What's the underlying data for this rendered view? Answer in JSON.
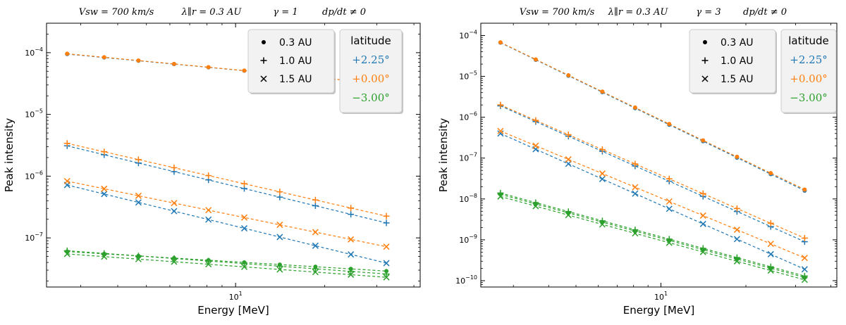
{
  "chart_data": [
    {
      "type": "scatter",
      "title": "V_sw = 700 km/s     λ∥^r = 0.3 AU     γ = 1     dp/dt ≠ 0",
      "title_parts": [
        "Vsw = 700 km/s",
        "λ∥r = 0.3 AU",
        "γ = 1",
        "dp/dt ≠ 0"
      ],
      "xlabel": "Energy [MeV]",
      "ylabel": "Peak intensity",
      "xscale": "log",
      "yscale": "log",
      "xlim": [
        2.3,
        42
      ],
      "ylim": [
        1.6e-08,
        0.0003
      ],
      "x_ticks": [
        {
          "value": 10,
          "label": "10^1"
        }
      ],
      "y_ticks": [
        {
          "value": 1e-07,
          "label": "10^-7"
        },
        {
          "value": 1e-06,
          "label": "10^-6"
        },
        {
          "value": 1e-05,
          "label": "10^-5"
        },
        {
          "value": 0.0001,
          "label": "10^-4"
        }
      ],
      "x": [
        2.7,
        3.6,
        4.7,
        6.2,
        8.1,
        10.7,
        14.1,
        18.6,
        24.5,
        32.3
      ],
      "series": [
        {
          "latitude": "+2.25°",
          "distance": "0.3 AU",
          "marker": "dot",
          "color": "#1f77b4",
          "y_start": 9.5e-05,
          "y_end": 3.1e-05
        },
        {
          "latitude": "+0.00°",
          "distance": "0.3 AU",
          "marker": "dot",
          "color": "#ff7f0e",
          "y_start": 9.6e-05,
          "y_end": 3.1e-05
        },
        {
          "latitude": "+2.25°",
          "distance": "1.0 AU",
          "marker": "plus",
          "color": "#1f77b4",
          "y_start": 3.1e-06,
          "y_end": 1.75e-07
        },
        {
          "latitude": "+0.00°",
          "distance": "1.0 AU",
          "marker": "plus",
          "color": "#ff7f0e",
          "y_start": 3.4e-06,
          "y_end": 2.25e-07
        },
        {
          "latitude": "+2.25°",
          "distance": "1.5 AU",
          "marker": "cross",
          "color": "#1f77b4",
          "y_start": 7.2e-07,
          "y_end": 3.9e-08
        },
        {
          "latitude": "+0.00°",
          "distance": "1.5 AU",
          "marker": "cross",
          "color": "#ff7f0e",
          "y_start": 8.3e-07,
          "y_end": 7.2e-08
        },
        {
          "latitude": "-3.00°",
          "distance": "0.3 AU",
          "marker": "dot",
          "color": "#2ca02c",
          "y_start": 6e-08,
          "y_end": 2.9e-08
        },
        {
          "latitude": "-3.00°",
          "distance": "1.0 AU",
          "marker": "plus",
          "color": "#2ca02c",
          "y_start": 6.2e-08,
          "y_end": 2.6e-08
        },
        {
          "latitude": "-3.00°",
          "distance": "1.5 AU",
          "marker": "cross",
          "color": "#2ca02c",
          "y_start": 5.5e-08,
          "y_end": 2.3e-08
        }
      ],
      "legend_markers": {
        "placement": "top-right",
        "entries": [
          {
            "marker": "dot",
            "label": "0.3 AU"
          },
          {
            "marker": "plus",
            "label": "1.0 AU"
          },
          {
            "marker": "cross",
            "label": "1.5 AU"
          }
        ]
      },
      "legend_latitude": {
        "title": "latitude",
        "placement": "top-right",
        "entries": [
          {
            "label": "+2.25°",
            "color": "#1f77b4"
          },
          {
            "label": "+0.00°",
            "color": "#ff7f0e"
          },
          {
            "label": "−3.00°",
            "color": "#2ca02c"
          }
        ]
      }
    },
    {
      "type": "scatter",
      "title": "V_sw = 700 km/s     λ∥^r = 0.3 AU     γ = 3     dp/dt ≠ 0",
      "title_parts": [
        "Vsw = 700 km/s",
        "λ∥r = 0.3 AU",
        "γ = 3",
        "dp/dt ≠ 0"
      ],
      "xlabel": "Energy [MeV]",
      "ylabel": "Peak intensity",
      "xscale": "log",
      "yscale": "log",
      "xlim": [
        2.3,
        42
      ],
      "ylim": [
        7e-11,
        0.0002
      ],
      "x_ticks": [
        {
          "value": 10,
          "label": "10^1"
        }
      ],
      "y_ticks": [
        {
          "value": 1e-10,
          "label": "10^-10"
        },
        {
          "value": 1e-09,
          "label": "10^-9"
        },
        {
          "value": 1e-08,
          "label": "10^-8"
        },
        {
          "value": 1e-07,
          "label": "10^-7"
        },
        {
          "value": 1e-06,
          "label": "10^-6"
        },
        {
          "value": 1e-05,
          "label": "10^-5"
        },
        {
          "value": 0.0001,
          "label": "10^-4"
        }
      ],
      "x": [
        2.7,
        3.6,
        4.7,
        6.2,
        8.1,
        10.7,
        14.1,
        18.6,
        24.5,
        32.3
      ],
      "series": [
        {
          "latitude": "+2.25°",
          "distance": "0.3 AU",
          "marker": "dot",
          "color": "#1f77b4",
          "y_start": 6.7e-05,
          "y_end": 1.6e-08
        },
        {
          "latitude": "+0.00°",
          "distance": "0.3 AU",
          "marker": "dot",
          "color": "#ff7f0e",
          "y_start": 6.8e-05,
          "y_end": 1.7e-08
        },
        {
          "latitude": "+2.25°",
          "distance": "1.0 AU",
          "marker": "plus",
          "color": "#1f77b4",
          "y_start": 1.9e-06,
          "y_end": 9e-10
        },
        {
          "latitude": "+0.00°",
          "distance": "1.0 AU",
          "marker": "plus",
          "color": "#ff7f0e",
          "y_start": 2e-06,
          "y_end": 1.1e-09
        },
        {
          "latitude": "+2.25°",
          "distance": "1.5 AU",
          "marker": "cross",
          "color": "#1f77b4",
          "y_start": 4e-07,
          "y_end": 1.9e-10
        },
        {
          "latitude": "+0.00°",
          "distance": "1.5 AU",
          "marker": "cross",
          "color": "#ff7f0e",
          "y_start": 4.6e-07,
          "y_end": 3.6e-10
        },
        {
          "latitude": "-3.00°",
          "distance": "0.3 AU",
          "marker": "dot",
          "color": "#2ca02c",
          "y_start": 1.3e-08,
          "y_end": 1.2e-10
        },
        {
          "latitude": "-3.00°",
          "distance": "1.0 AU",
          "marker": "plus",
          "color": "#2ca02c",
          "y_start": 1.4e-08,
          "y_end": 1.3e-10
        },
        {
          "latitude": "-3.00°",
          "distance": "1.5 AU",
          "marker": "cross",
          "color": "#2ca02c",
          "y_start": 1.15e-08,
          "y_end": 1.05e-10
        }
      ],
      "legend_markers": {
        "placement": "top-right",
        "entries": [
          {
            "marker": "dot",
            "label": "0.3 AU"
          },
          {
            "marker": "plus",
            "label": "1.0 AU"
          },
          {
            "marker": "cross",
            "label": "1.5 AU"
          }
        ]
      },
      "legend_latitude": {
        "title": "latitude",
        "placement": "top-right",
        "entries": [
          {
            "label": "+2.25°",
            "color": "#1f77b4"
          },
          {
            "label": "+0.00°",
            "color": "#ff7f0e"
          },
          {
            "label": "−3.00°",
            "color": "#2ca02c"
          }
        ]
      }
    }
  ]
}
